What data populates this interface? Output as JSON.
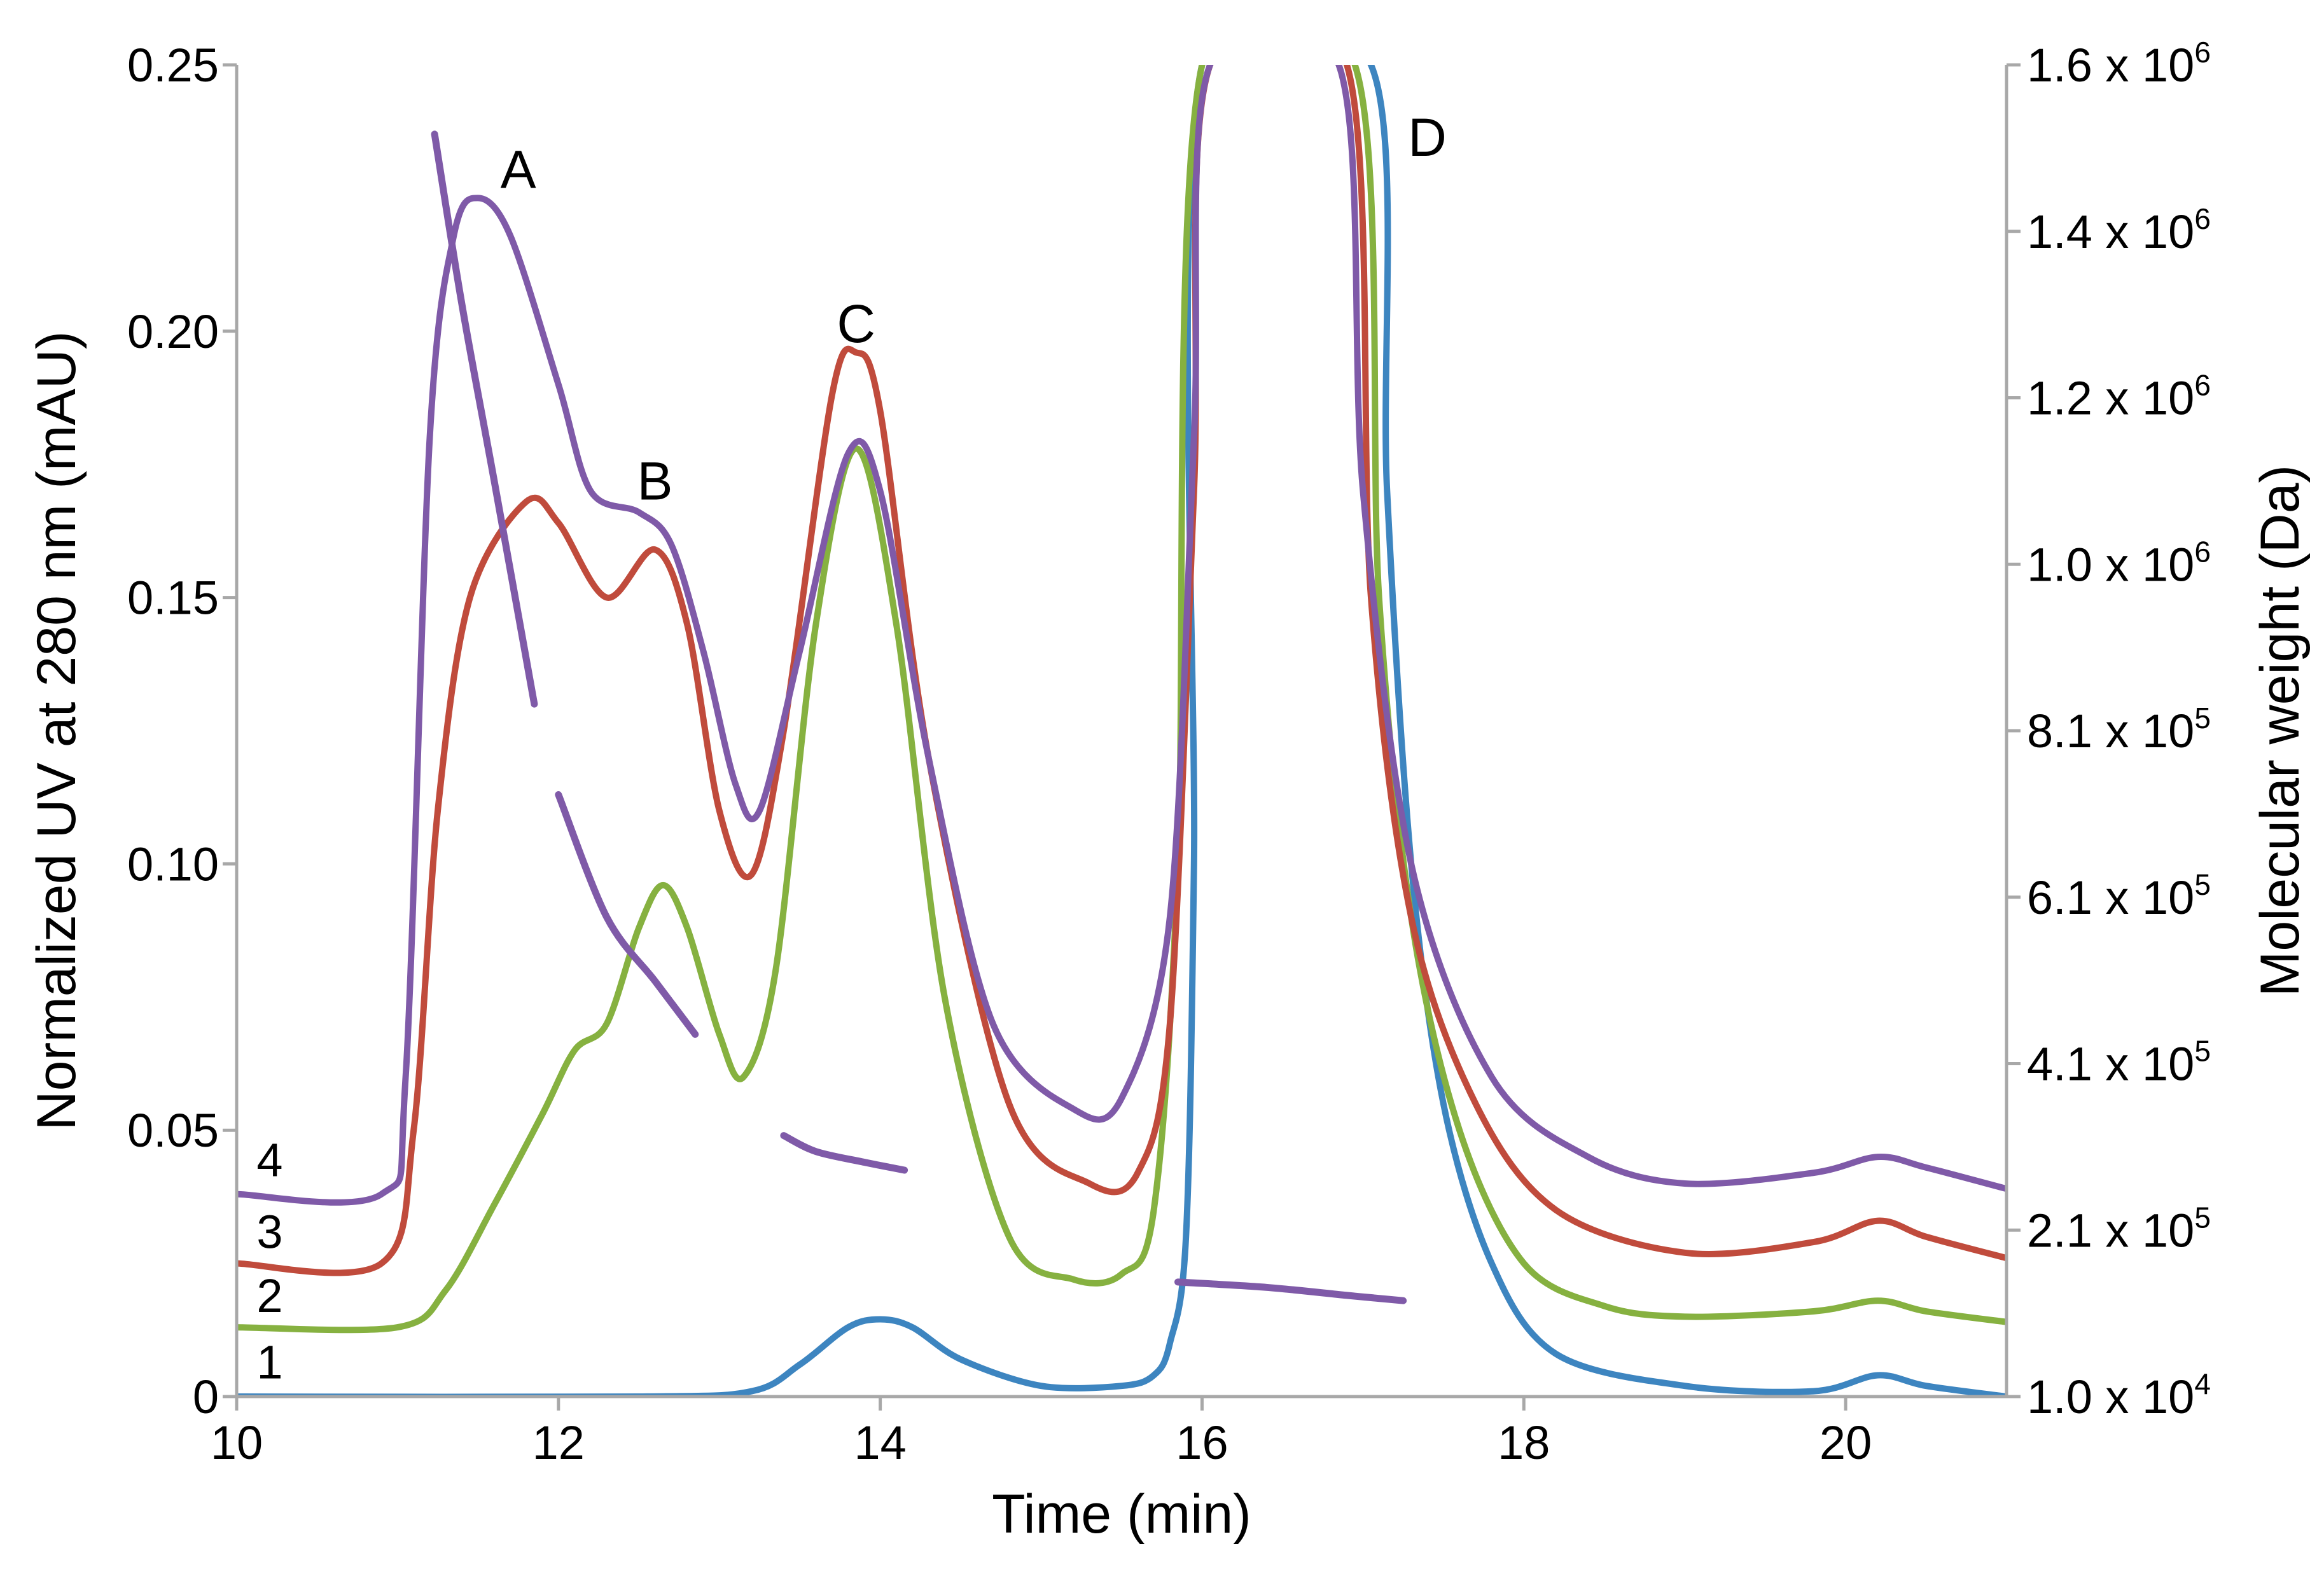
{
  "chart_data": {
    "type": "line",
    "xlabel": "Time (min)",
    "ylabel": "Normalized UV at 280 nm (mAU)",
    "y2label": "Molecular weight (Da)",
    "xlim": [
      10,
      21
    ],
    "ylim": [
      0,
      0.25
    ],
    "x_ticks": [
      {
        "value": 10,
        "label": "10"
      },
      {
        "value": 12,
        "label": "12"
      },
      {
        "value": 14,
        "label": "14"
      },
      {
        "value": 16,
        "label": "16"
      },
      {
        "value": 18,
        "label": "18"
      },
      {
        "value": 20,
        "label": "20"
      }
    ],
    "y_ticks": [
      {
        "value": 0,
        "label": "0"
      },
      {
        "value": 0.05,
        "label": "0.05"
      },
      {
        "value": 0.1,
        "label": "0.10"
      },
      {
        "value": 0.15,
        "label": "0.15"
      },
      {
        "value": 0.2,
        "label": "0.20"
      },
      {
        "value": 0.25,
        "label": "0.25"
      }
    ],
    "y2_ticks": [
      {
        "mantissa": "1.0 x 10",
        "exp": "4",
        "frac": 0.0
      },
      {
        "mantissa": "2.1 x 10",
        "exp": "5",
        "frac": 0.125
      },
      {
        "mantissa": "4.1 x 10",
        "exp": "5",
        "frac": 0.25
      },
      {
        "mantissa": "6.1 x 10",
        "exp": "5",
        "frac": 0.375
      },
      {
        "mantissa": "8.1 x 10",
        "exp": "5",
        "frac": 0.5
      },
      {
        "mantissa": "1.0 x 10",
        "exp": "6",
        "frac": 0.625
      },
      {
        "mantissa": "1.2 x 10",
        "exp": "6",
        "frac": 0.75
      },
      {
        "mantissa": "1.4 x 10",
        "exp": "6",
        "frac": 0.875
      },
      {
        "mantissa": "1.6 x 10",
        "exp": "6",
        "frac": 1.0
      }
    ],
    "peak_labels": [
      {
        "text": "A",
        "x": 11.75,
        "y": 0.2305
      },
      {
        "text": "B",
        "x": 12.6,
        "y": 0.172
      },
      {
        "text": "C",
        "x": 13.85,
        "y": 0.2015
      },
      {
        "text": "D",
        "x": 17.4,
        "y": 0.2365
      }
    ],
    "series": [
      {
        "name": "1",
        "color": "#3d85c0",
        "label_y": 0.0065,
        "points": [
          [
            10,
            0.0
          ],
          [
            12.5,
            0.0
          ],
          [
            13.2,
            0.001
          ],
          [
            13.5,
            0.006
          ],
          [
            13.8,
            0.013
          ],
          [
            14.0,
            0.0145
          ],
          [
            14.2,
            0.013
          ],
          [
            14.5,
            0.007
          ],
          [
            15.0,
            0.002
          ],
          [
            15.5,
            0.002
          ],
          [
            15.7,
            0.004
          ],
          [
            15.8,
            0.01
          ],
          [
            15.9,
            0.03
          ],
          [
            15.95,
            0.1
          ],
          [
            16.0,
            0.25
          ],
          [
            17.05,
            0.25
          ],
          [
            17.15,
            0.17
          ],
          [
            17.3,
            0.1
          ],
          [
            17.5,
            0.055
          ],
          [
            17.8,
            0.025
          ],
          [
            18.2,
            0.008
          ],
          [
            19.0,
            0.002
          ],
          [
            19.8,
            0.001
          ],
          [
            20.2,
            0.004
          ],
          [
            20.5,
            0.002
          ],
          [
            21.0,
            0.0
          ]
        ]
      },
      {
        "name": "2",
        "color": "#86b140",
        "label_y": 0.019,
        "points": [
          [
            10,
            0.013
          ],
          [
            11.0,
            0.013
          ],
          [
            11.3,
            0.02
          ],
          [
            11.6,
            0.036
          ],
          [
            11.9,
            0.053
          ],
          [
            12.1,
            0.065
          ],
          [
            12.3,
            0.07
          ],
          [
            12.5,
            0.088
          ],
          [
            12.65,
            0.096
          ],
          [
            12.8,
            0.088
          ],
          [
            13.0,
            0.068
          ],
          [
            13.15,
            0.06
          ],
          [
            13.35,
            0.08
          ],
          [
            13.6,
            0.145
          ],
          [
            13.85,
            0.178
          ],
          [
            14.1,
            0.145
          ],
          [
            14.4,
            0.075
          ],
          [
            14.8,
            0.03
          ],
          [
            15.2,
            0.022
          ],
          [
            15.5,
            0.023
          ],
          [
            15.7,
            0.035
          ],
          [
            15.85,
            0.1
          ],
          [
            16.0,
            0.25
          ],
          [
            16.95,
            0.25
          ],
          [
            17.1,
            0.15
          ],
          [
            17.3,
            0.09
          ],
          [
            17.6,
            0.05
          ],
          [
            18.0,
            0.025
          ],
          [
            18.5,
            0.017
          ],
          [
            19.0,
            0.015
          ],
          [
            19.8,
            0.016
          ],
          [
            20.2,
            0.018
          ],
          [
            20.5,
            0.016
          ],
          [
            21.0,
            0.014
          ]
        ]
      },
      {
        "name": "3",
        "color": "#c04b3c",
        "label_y": 0.031,
        "points": [
          [
            10,
            0.025
          ],
          [
            10.9,
            0.025
          ],
          [
            11.1,
            0.05
          ],
          [
            11.25,
            0.11
          ],
          [
            11.45,
            0.15
          ],
          [
            11.8,
            0.168
          ],
          [
            12.0,
            0.164
          ],
          [
            12.3,
            0.15
          ],
          [
            12.6,
            0.159
          ],
          [
            12.8,
            0.145
          ],
          [
            13.0,
            0.11
          ],
          [
            13.2,
            0.098
          ],
          [
            13.4,
            0.125
          ],
          [
            13.7,
            0.188
          ],
          [
            13.85,
            0.196
          ],
          [
            14.0,
            0.185
          ],
          [
            14.3,
            0.12
          ],
          [
            14.8,
            0.055
          ],
          [
            15.3,
            0.04
          ],
          [
            15.6,
            0.042
          ],
          [
            15.8,
            0.07
          ],
          [
            15.95,
            0.17
          ],
          [
            16.05,
            0.25
          ],
          [
            16.9,
            0.25
          ],
          [
            17.05,
            0.15
          ],
          [
            17.3,
            0.09
          ],
          [
            17.7,
            0.055
          ],
          [
            18.2,
            0.035
          ],
          [
            19.0,
            0.027
          ],
          [
            19.8,
            0.029
          ],
          [
            20.2,
            0.033
          ],
          [
            20.5,
            0.03
          ],
          [
            21.0,
            0.026
          ]
        ]
      },
      {
        "name": "4",
        "color": "#7f5aa8",
        "label_y": 0.0445,
        "points": [
          [
            10,
            0.038
          ],
          [
            10.9,
            0.038
          ],
          [
            11.05,
            0.06
          ],
          [
            11.2,
            0.18
          ],
          [
            11.35,
            0.218
          ],
          [
            11.5,
            0.225
          ],
          [
            11.7,
            0.218
          ],
          [
            12.0,
            0.19
          ],
          [
            12.2,
            0.17
          ],
          [
            12.5,
            0.166
          ],
          [
            12.7,
            0.16
          ],
          [
            12.9,
            0.14
          ],
          [
            13.1,
            0.115
          ],
          [
            13.25,
            0.11
          ],
          [
            13.5,
            0.14
          ],
          [
            13.8,
            0.177
          ],
          [
            14.0,
            0.17
          ],
          [
            14.3,
            0.12
          ],
          [
            14.7,
            0.07
          ],
          [
            15.2,
            0.054
          ],
          [
            15.5,
            0.056
          ],
          [
            15.8,
            0.09
          ],
          [
            15.95,
            0.18
          ],
          [
            16.05,
            0.25
          ],
          [
            16.85,
            0.25
          ],
          [
            17.0,
            0.17
          ],
          [
            17.3,
            0.1
          ],
          [
            17.8,
            0.06
          ],
          [
            18.4,
            0.045
          ],
          [
            19.0,
            0.04
          ],
          [
            19.8,
            0.042
          ],
          [
            20.2,
            0.045
          ],
          [
            20.5,
            0.043
          ],
          [
            21.0,
            0.039
          ]
        ]
      }
    ],
    "molecular_weight": {
      "color": "#7f5aa8",
      "segments": [
        [
          [
            11.23,
            0.237
          ],
          [
            11.4,
            0.205
          ],
          [
            11.6,
            0.172
          ],
          [
            11.85,
            0.13
          ]
        ],
        [
          [
            12.0,
            0.113
          ],
          [
            12.3,
            0.09
          ],
          [
            12.6,
            0.078
          ],
          [
            12.85,
            0.068
          ]
        ],
        [
          [
            13.4,
            0.049
          ],
          [
            13.6,
            0.046
          ],
          [
            13.9,
            0.044
          ],
          [
            14.15,
            0.0425
          ]
        ],
        [
          [
            15.85,
            0.0215
          ],
          [
            16.4,
            0.0205
          ],
          [
            16.9,
            0.019
          ],
          [
            17.25,
            0.018
          ]
        ]
      ]
    }
  }
}
